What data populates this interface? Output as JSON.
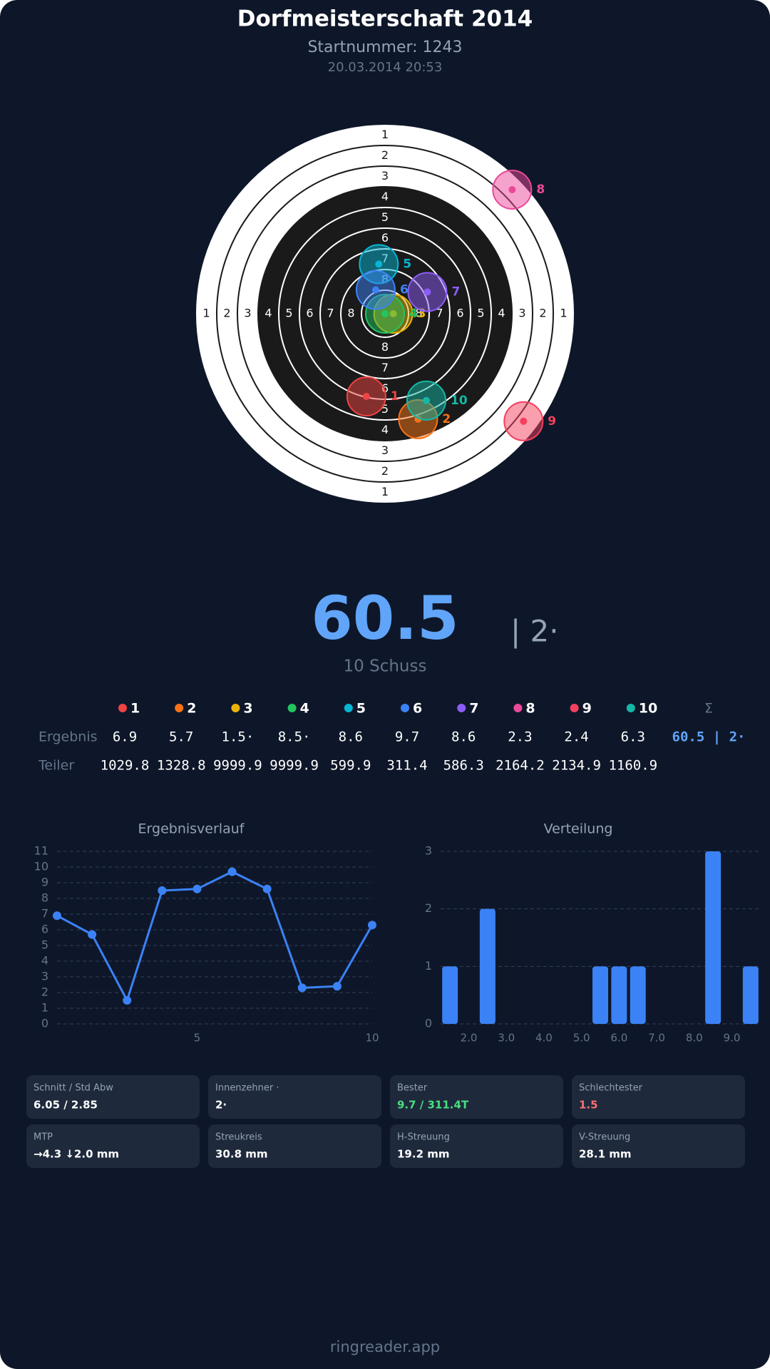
{
  "header": {
    "title": "Dorfmeisterschaft 2014",
    "start_number": "Startnummer: 1243",
    "datetime": "20.03.2014 20:53"
  },
  "target": {
    "ring_labels": [
      "1",
      "2",
      "3",
      "4",
      "5",
      "6",
      "7",
      "8"
    ]
  },
  "shots": [
    {
      "label": "1",
      "color": "#ef4444",
      "x": -0.9,
      "y": -4.0
    },
    {
      "label": "2",
      "color": "#f97316",
      "x": 1.6,
      "y": -5.1
    },
    {
      "label": "3",
      "color": "#eab308",
      "x": 0.4,
      "y": 0
    },
    {
      "label": "4",
      "color": "#22c55e",
      "x": 0,
      "y": 0
    },
    {
      "label": "5",
      "color": "#06b6d4",
      "x": -0.3,
      "y": 2.4
    },
    {
      "label": "6",
      "color": "#3b82f6",
      "x": -0.45,
      "y": 1.15
    },
    {
      "label": "7",
      "color": "#8b5cf6",
      "x": 2.05,
      "y": 1.05
    },
    {
      "label": "8",
      "color": "#ec4899",
      "x": 6.15,
      "y": 6.0
    },
    {
      "label": "9",
      "color": "#f43f5e",
      "x": 6.7,
      "y": -5.2
    },
    {
      "label": "10",
      "color": "#14b8a6",
      "x": 2.0,
      "y": -4.2
    }
  ],
  "summary": {
    "total": 60.5,
    "inner_tens": "| 2·",
    "shots": "10 Schuss"
  },
  "table": {
    "row_labels": [
      "Ergebnis",
      "Teiler"
    ],
    "sum_label": "Σ",
    "results": [
      6.9,
      5.7,
      1.5,
      8.5,
      8.6,
      9.7,
      8.6,
      2.3,
      2.4,
      6.3
    ],
    "value_labels": [
      "6.9",
      "5.7",
      "1.5·",
      "8.5·",
      "8.6",
      "9.7",
      "8.6",
      "2.3",
      "2.4",
      "6.3"
    ],
    "teiler": [
      1029.8,
      1328.8,
      9999.9,
      9999.9,
      599.9,
      311.4,
      586.3,
      2164.2,
      2134.9,
      1160.9
    ],
    "sum": "60.5 | 2·"
  },
  "chart_data": [
    {
      "type": "line",
      "title": "Ergebnisverlauf",
      "x": [
        1,
        2,
        3,
        4,
        5,
        6,
        7,
        8,
        9,
        10
      ],
      "values": [
        6.9,
        5.7,
        1.5,
        8.5,
        8.6,
        9.7,
        8.6,
        2.3,
        2.4,
        6.3
      ],
      "color": "#3b82f6",
      "xlim": [
        1,
        10
      ],
      "ylim": [
        0,
        11
      ],
      "xticks": [
        5,
        10
      ],
      "yticks": [
        0,
        1,
        2,
        3,
        4,
        5,
        6,
        7,
        8,
        9,
        10,
        11
      ],
      "grid": true
    },
    {
      "type": "bar",
      "title": "Verteilung",
      "x": [
        1.5,
        2.5,
        5.5,
        6,
        6.5,
        8.5,
        9.5
      ],
      "values": [
        1,
        2,
        1,
        1,
        1,
        3,
        1
      ],
      "color": "#3b82f6",
      "xlim": [
        1.25,
        9.75
      ],
      "ylim": [
        0,
        3
      ],
      "xticks": [
        {
          "value": 2,
          "label": "2.0"
        },
        {
          "value": 3,
          "label": "3.0"
        },
        {
          "value": 4,
          "label": "4.0"
        },
        {
          "value": 5,
          "label": "5.0"
        },
        {
          "value": 6,
          "label": "6.0"
        },
        {
          "value": 7,
          "label": "7.0"
        },
        {
          "value": 8,
          "label": "8.0"
        },
        {
          "value": 9,
          "label": "9.0"
        }
      ],
      "yticks": [
        0,
        1,
        2,
        3
      ],
      "grid": true
    }
  ],
  "stats": [
    {
      "label": "Schnitt / Std Abw",
      "value": "6.05 / 2.85",
      "color": "#ffffff"
    },
    {
      "label": "Innenzehner ·",
      "value": "2·",
      "color": "#ffffff"
    },
    {
      "label": "Bester",
      "value": "9.7 / 311.4T",
      "color": "#4ade80"
    },
    {
      "label": "Schlechtester",
      "value": "1.5",
      "color": "#f87171"
    },
    {
      "label": "MTP",
      "value": "→4.3 ↓2.0 mm",
      "color": "#ffffff"
    },
    {
      "label": "Streukreis",
      "value": "30.8 mm",
      "color": "#ffffff"
    },
    {
      "label": "H-Streuung",
      "value": "19.2 mm",
      "color": "#ffffff"
    },
    {
      "label": "V-Streuung",
      "value": "28.1 mm",
      "color": "#ffffff"
    }
  ],
  "footer": "ringreader.app"
}
